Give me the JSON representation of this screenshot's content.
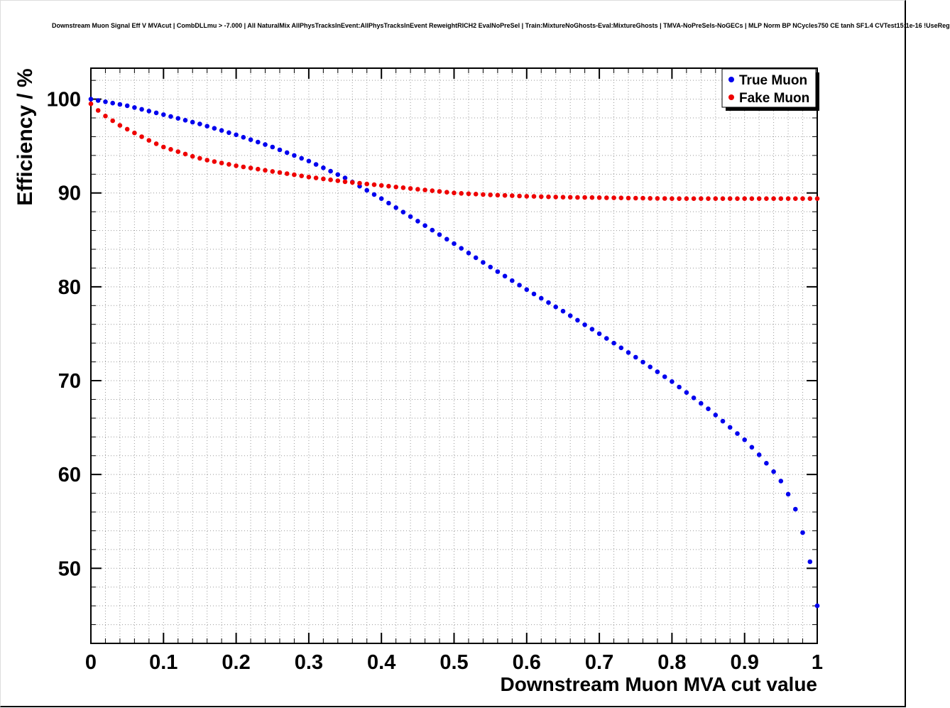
{
  "header": {
    "title": "Downstream Muon Signal Eff V MVAcut | CombDLLmu > -7.000 | All NaturalMix AllPhysTracksInEvent:AllPhysTracksInEvent ReweightRICH2 EvalNoPreSel | Train:MixtureNoGhosts-Eval:MixtureGhosts | TMVA-NoPreSels-NoGECs | MLP Norm BP NCycles750 CE tanh SF1.4 CVTest15:1e-16 !UseReg"
  },
  "chart_data": {
    "type": "scatter",
    "title": "Downstream Muon Signal Eff V MVAcut",
    "xlabel": "Downstream Muon MVA cut value",
    "ylabel": "Efficiency / %",
    "xlim": [
      0,
      1
    ],
    "ylim": [
      42,
      103.3
    ],
    "grid": "dotted",
    "x_ticks": [
      0,
      0.1,
      0.2,
      0.3,
      0.4,
      0.5,
      0.6,
      0.7,
      0.8,
      0.9,
      1
    ],
    "x_tick_labels": [
      "0",
      "0.1",
      "0.2",
      "0.3",
      "0.4",
      "0.5",
      "0.6",
      "0.7",
      "0.8",
      "0.9",
      "1"
    ],
    "y_ticks": [
      50,
      60,
      70,
      80,
      90,
      100
    ],
    "y_tick_labels": [
      "50",
      "60",
      "70",
      "80",
      "90",
      "100"
    ],
    "legend": {
      "position": "top-right"
    },
    "marker_radius": 3.3,
    "x": [
      0,
      0.01,
      0.02,
      0.03,
      0.04,
      0.05,
      0.06,
      0.07,
      0.08,
      0.09,
      0.1,
      0.11,
      0.12,
      0.13,
      0.14,
      0.15,
      0.16,
      0.17,
      0.18,
      0.19,
      0.2,
      0.21,
      0.22,
      0.23,
      0.24,
      0.25,
      0.26,
      0.27,
      0.28,
      0.29,
      0.3,
      0.31,
      0.32,
      0.33,
      0.34,
      0.35,
      0.36,
      0.37,
      0.38,
      0.39,
      0.4,
      0.41,
      0.42,
      0.43,
      0.44,
      0.45,
      0.46,
      0.47,
      0.48,
      0.49,
      0.5,
      0.51,
      0.52,
      0.53,
      0.54,
      0.55,
      0.56,
      0.57,
      0.58,
      0.59,
      0.6,
      0.61,
      0.62,
      0.63,
      0.64,
      0.65,
      0.66,
      0.67,
      0.68,
      0.69,
      0.7,
      0.71,
      0.72,
      0.73,
      0.74,
      0.75,
      0.76,
      0.77,
      0.78,
      0.79,
      0.8,
      0.81,
      0.82,
      0.83,
      0.84,
      0.85,
      0.86,
      0.87,
      0.88,
      0.89,
      0.9,
      0.91,
      0.92,
      0.93,
      0.94,
      0.95,
      0.96,
      0.97,
      0.98,
      0.99,
      1
    ],
    "series": [
      {
        "name": "True Muon",
        "color": "#0000ee",
        "values": [
          100,
          99.86,
          99.72,
          99.58,
          99.44,
          99.3,
          99.11,
          98.92,
          98.73,
          98.54,
          98.35,
          98.15,
          97.95,
          97.75,
          97.55,
          97.35,
          97.12,
          96.89,
          96.66,
          96.43,
          96.2,
          95.94,
          95.68,
          95.42,
          95.16,
          94.9,
          94.6,
          94.3,
          94,
          93.7,
          93.4,
          93.04,
          92.68,
          92.32,
          91.96,
          91.6,
          91.16,
          90.72,
          90.28,
          89.84,
          89.4,
          88.92,
          88.44,
          87.96,
          87.48,
          87,
          86.52,
          86.04,
          85.56,
          85.08,
          84.6,
          84.1,
          83.6,
          83.1,
          82.6,
          82.1,
          81.62,
          81.14,
          80.66,
          80.18,
          79.7,
          79.24,
          78.78,
          78.32,
          77.86,
          77.4,
          76.92,
          76.44,
          75.96,
          75.48,
          75,
          74.5,
          74,
          73.5,
          73,
          72.5,
          71.98,
          71.46,
          70.94,
          70.42,
          69.9,
          69.32,
          68.74,
          68.16,
          67.58,
          67,
          66.34,
          65.68,
          65.02,
          64.36,
          63.7,
          62.9,
          62.1,
          61.2,
          60.3,
          59.3,
          57.9,
          56.3,
          53.8,
          50.7,
          46
        ]
      },
      {
        "name": "Fake Muon",
        "color": "#ee0000",
        "values": [
          99.5,
          98.8,
          98.2,
          97.7,
          97.2,
          96.8,
          96.4,
          96,
          95.6,
          95.25,
          94.9,
          94.65,
          94.4,
          94.15,
          93.9,
          93.7,
          93.5,
          93.35,
          93.2,
          93.05,
          92.9,
          92.78,
          92.66,
          92.54,
          92.42,
          92.3,
          92.18,
          92.06,
          91.94,
          91.82,
          91.7,
          91.6,
          91.5,
          91.4,
          91.3,
          91.2,
          91.12,
          91.04,
          90.96,
          90.88,
          90.8,
          90.72,
          90.64,
          90.56,
          90.48,
          90.4,
          90.32,
          90.24,
          90.16,
          90.08,
          90,
          89.96,
          89.92,
          89.88,
          89.84,
          89.8,
          89.77,
          89.74,
          89.71,
          89.68,
          89.65,
          89.63,
          89.61,
          89.59,
          89.57,
          89.55,
          89.54,
          89.53,
          89.52,
          89.51,
          89.5,
          89.49,
          89.48,
          89.47,
          89.46,
          89.45,
          89.44,
          89.43,
          89.42,
          89.41,
          89.4,
          89.4,
          89.4,
          89.4,
          89.4,
          89.4,
          89.4,
          89.4,
          89.4,
          89.4,
          89.4,
          89.4,
          89.4,
          89.4,
          89.4,
          89.4,
          89.4,
          89.4,
          89.4,
          89.4,
          89.4
        ]
      }
    ]
  }
}
